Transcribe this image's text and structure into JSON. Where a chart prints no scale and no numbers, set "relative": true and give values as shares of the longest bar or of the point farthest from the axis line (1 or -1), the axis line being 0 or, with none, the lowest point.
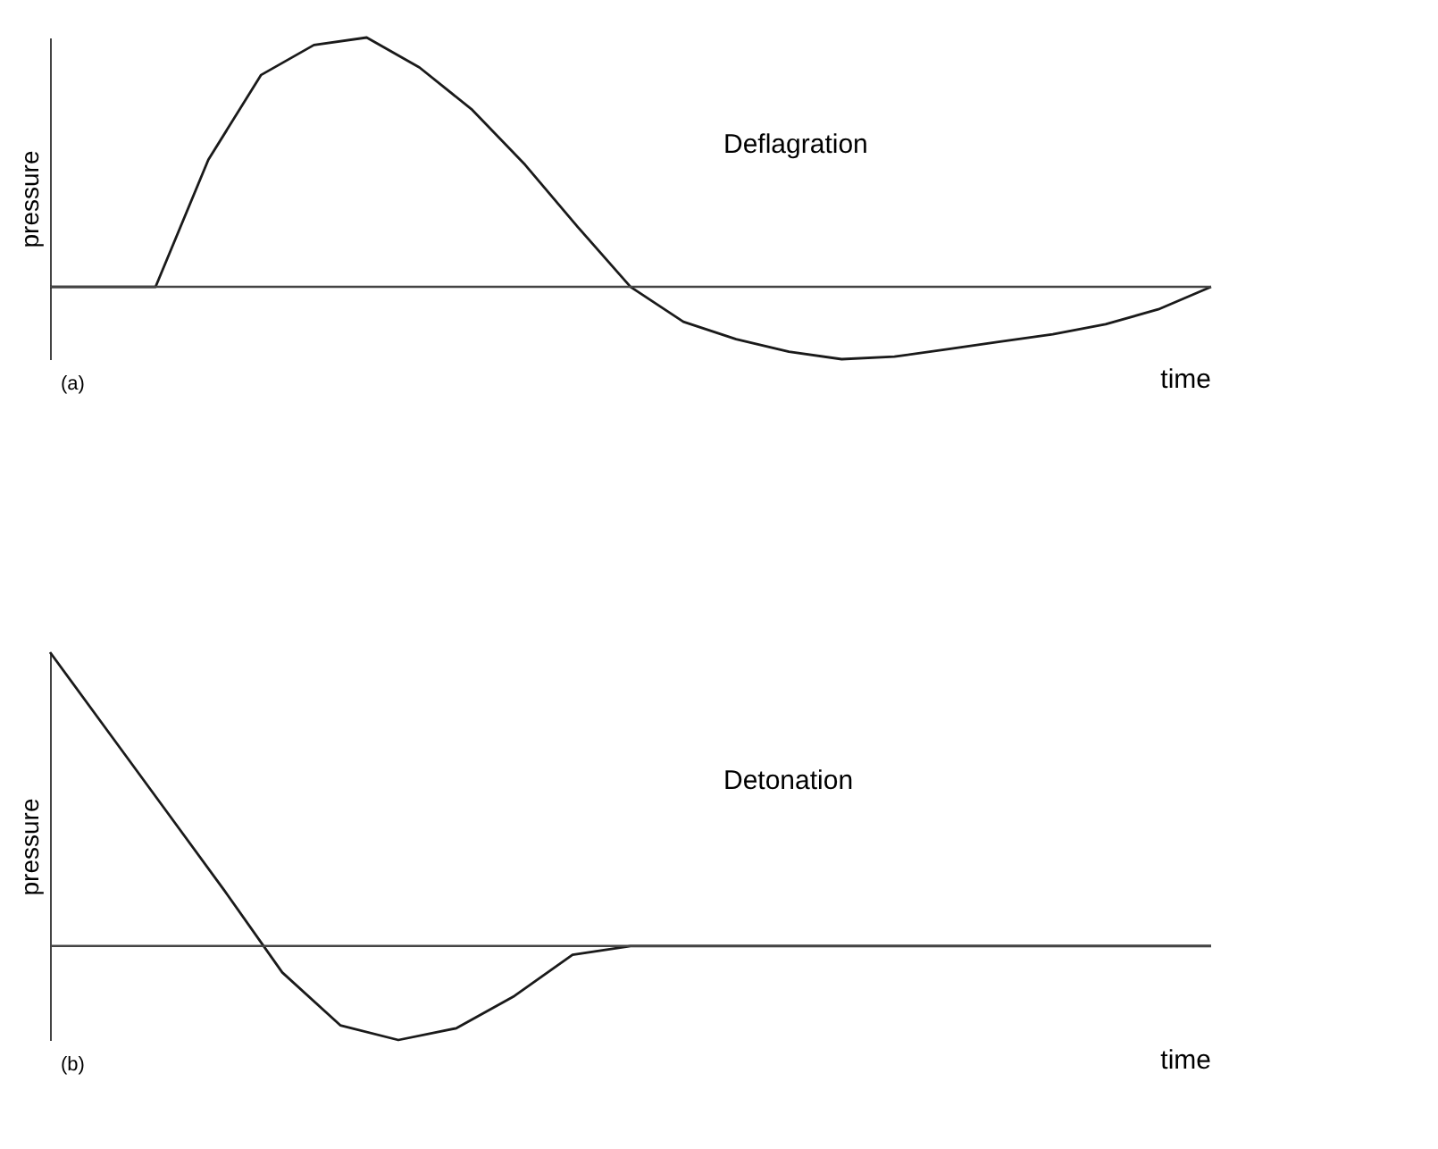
{
  "chart_data": [
    {
      "type": "line",
      "title": "Deflagration",
      "xlabel": "time",
      "ylabel": "pressure",
      "annotations": [
        "(a)"
      ],
      "relative": true,
      "tick_labels": false,
      "color": "#1a1a1a",
      "categories": [
        null,
        null,
        null,
        null,
        null,
        null,
        null,
        null,
        null,
        null,
        null,
        null,
        null,
        null,
        null,
        null,
        null,
        null,
        null,
        null,
        null,
        null,
        null
      ],
      "values": [
        0,
        0,
        0,
        0.51,
        0.85,
        0.97,
        1,
        0.88,
        0.71,
        0.49,
        0.24,
        0,
        -0.14,
        -0.21,
        -0.26,
        -0.29,
        -0.28,
        -0.25,
        -0.22,
        -0.19,
        -0.15,
        -0.09,
        0
      ]
    },
    {
      "type": "line",
      "title": "Detonation",
      "xlabel": "time",
      "ylabel": "pressure",
      "annotations": [
        "(b)"
      ],
      "relative": true,
      "tick_labels": false,
      "color": "#1a1a1a",
      "categories": [
        null,
        null,
        null,
        null,
        null,
        null,
        null,
        null,
        null,
        null,
        null,
        null,
        null,
        null,
        null,
        null,
        null,
        null,
        null,
        null,
        null
      ],
      "values": [
        1,
        0.73,
        0.46,
        0.19,
        -0.09,
        -0.27,
        -0.32,
        -0.28,
        -0.17,
        -0.03,
        0,
        0,
        0,
        0,
        0,
        0,
        0,
        0,
        0,
        0,
        0
      ]
    }
  ]
}
